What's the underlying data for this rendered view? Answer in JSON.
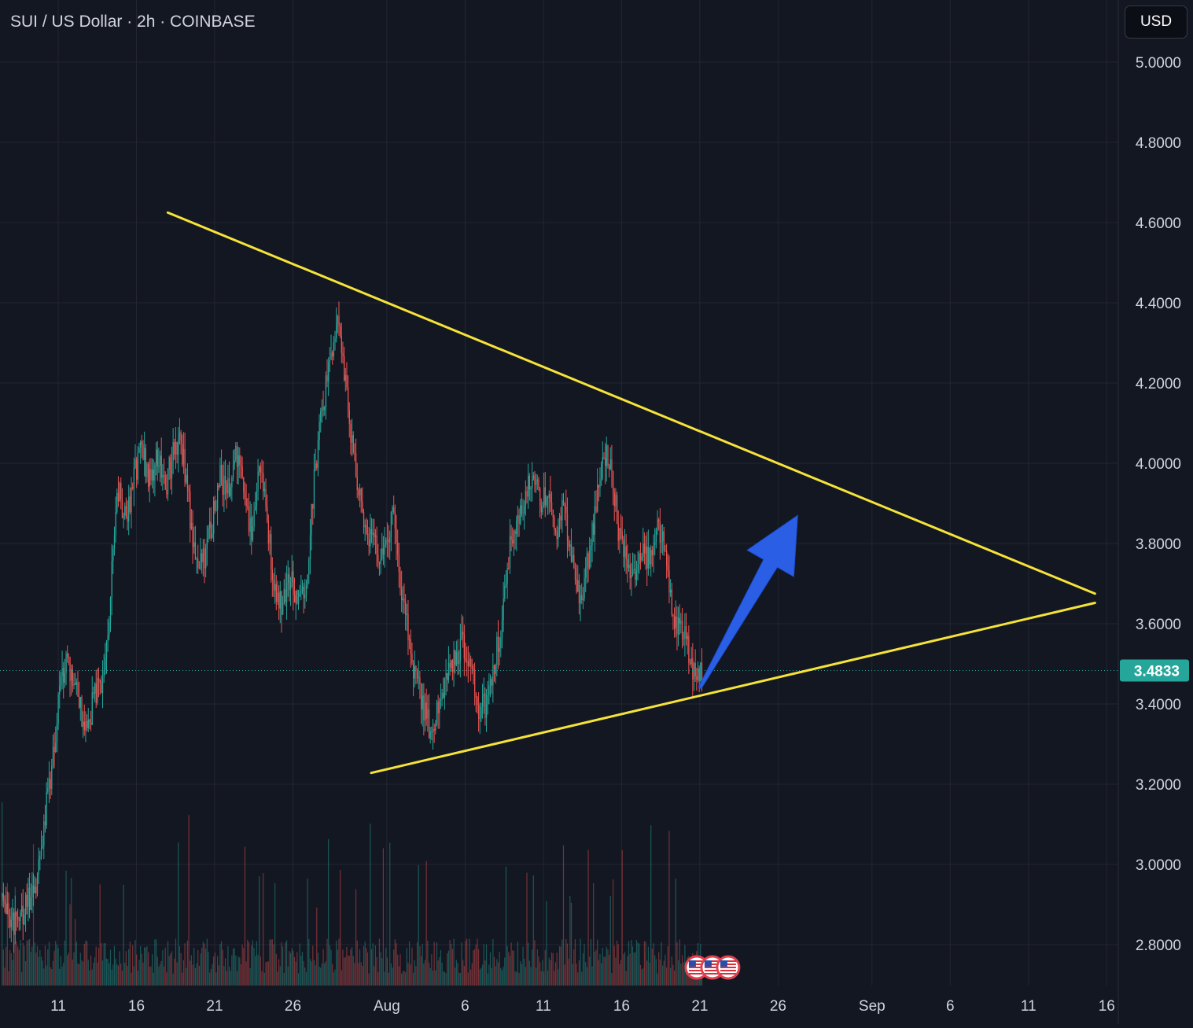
{
  "header": {
    "symbol_title": "SUI / US Dollar · 2h · COINBASE",
    "currency": "USD"
  },
  "colors": {
    "background": "#131722",
    "grid": "#232632",
    "axis_text": "#d1d4dc",
    "candle_up": "#26a69a",
    "candle_down": "#ef5350",
    "trendline": "#f5e33a",
    "arrow": "#2a5fe5",
    "price_badge": "#26a69a"
  },
  "chart_data": {
    "type": "candlestick",
    "timeframe": "2h",
    "y_axis": {
      "ticks": [
        "5.0000",
        "4.8000",
        "4.6000",
        "4.4000",
        "4.2000",
        "4.0000",
        "3.8000",
        "3.6000",
        "3.4000",
        "3.2000",
        "3.0000",
        "2.8000"
      ],
      "range": [
        2.7,
        5.13
      ]
    },
    "x_axis": {
      "ticks": [
        "11",
        "16",
        "21",
        "26",
        "Aug",
        "6",
        "11",
        "16",
        "21",
        "26",
        "Sep",
        "6",
        "11",
        "16"
      ],
      "tick_dates": [
        "2024-07-11",
        "2024-07-16",
        "2024-07-21",
        "2024-07-26",
        "2024-08-01",
        "2024-08-06",
        "2024-08-11",
        "2024-08-16",
        "2024-08-21",
        "2024-08-26",
        "2024-09-01",
        "2024-09-06",
        "2024-09-11",
        "2024-09-16"
      ],
      "range": [
        "2024-07-07 08:00",
        "2024-09-17 00:00"
      ]
    },
    "current_price": "3.4833",
    "price_path": [
      [
        "2024-07-07 10:00",
        2.92
      ],
      [
        "2024-07-08 06:00",
        2.85
      ],
      [
        "2024-07-08 20:00",
        2.89
      ],
      [
        "2024-07-09 14:00",
        2.95
      ],
      [
        "2024-07-10 02:00",
        3.1
      ],
      [
        "2024-07-10 14:00",
        3.24
      ],
      [
        "2024-07-11 00:00",
        3.4
      ],
      [
        "2024-07-11 10:00",
        3.5
      ],
      [
        "2024-07-11 20:00",
        3.48
      ],
      [
        "2024-07-12 08:00",
        3.4
      ],
      [
        "2024-07-12 18:00",
        3.33
      ],
      [
        "2024-07-13 08:00",
        3.42
      ],
      [
        "2024-07-13 20:00",
        3.45
      ],
      [
        "2024-07-14 08:00",
        3.66
      ],
      [
        "2024-07-14 18:00",
        3.95
      ],
      [
        "2024-07-15 08:00",
        3.85
      ],
      [
        "2024-07-15 20:00",
        3.96
      ],
      [
        "2024-07-16 08:00",
        4.05
      ],
      [
        "2024-07-16 20:00",
        3.95
      ],
      [
        "2024-07-17 08:00",
        4.02
      ],
      [
        "2024-07-17 20:00",
        3.94
      ],
      [
        "2024-07-18 08:00",
        4.02
      ],
      [
        "2024-07-18 20:00",
        4.06
      ],
      [
        "2024-07-19 08:00",
        3.9
      ],
      [
        "2024-07-19 20:00",
        3.74
      ],
      [
        "2024-07-20 08:00",
        3.77
      ],
      [
        "2024-07-20 20:00",
        3.85
      ],
      [
        "2024-07-21 08:00",
        3.97
      ],
      [
        "2024-07-21 20:00",
        3.93
      ],
      [
        "2024-07-22 08:00",
        4.02
      ],
      [
        "2024-07-22 20:00",
        3.93
      ],
      [
        "2024-07-23 08:00",
        3.82
      ],
      [
        "2024-07-23 20:00",
        3.99
      ],
      [
        "2024-07-24 08:00",
        3.87
      ],
      [
        "2024-07-24 20:00",
        3.68
      ],
      [
        "2024-07-25 08:00",
        3.64
      ],
      [
        "2024-07-25 20:00",
        3.73
      ],
      [
        "2024-07-26 08:00",
        3.65
      ],
      [
        "2024-07-26 20:00",
        3.7
      ],
      [
        "2024-07-27 08:00",
        3.95
      ],
      [
        "2024-07-27 20:00",
        4.12
      ],
      [
        "2024-07-28 08:00",
        4.25
      ],
      [
        "2024-07-28 20:00",
        4.38
      ],
      [
        "2024-07-29 08:00",
        4.2
      ],
      [
        "2024-07-29 20:00",
        4.02
      ],
      [
        "2024-07-30 08:00",
        3.9
      ],
      [
        "2024-07-30 20:00",
        3.83
      ],
      [
        "2024-07-31 08:00",
        3.78
      ],
      [
        "2024-07-31 20:00",
        3.76
      ],
      [
        "2024-08-01 08:00",
        3.88
      ],
      [
        "2024-08-01 20:00",
        3.72
      ],
      [
        "2024-08-02 08:00",
        3.58
      ],
      [
        "2024-08-02 20:00",
        3.46
      ],
      [
        "2024-08-03 08:00",
        3.39
      ],
      [
        "2024-08-03 20:00",
        3.33
      ],
      [
        "2024-08-04 08:00",
        3.4
      ],
      [
        "2024-08-04 20:00",
        3.46
      ],
      [
        "2024-08-05 08:00",
        3.52
      ],
      [
        "2024-08-05 20:00",
        3.55
      ],
      [
        "2024-08-06 08:00",
        3.5
      ],
      [
        "2024-08-06 20:00",
        3.39
      ],
      [
        "2024-08-07 08:00",
        3.4
      ],
      [
        "2024-08-07 20:00",
        3.5
      ],
      [
        "2024-08-08 08:00",
        3.6
      ],
      [
        "2024-08-08 20:00",
        3.78
      ],
      [
        "2024-08-09 08:00",
        3.85
      ],
      [
        "2024-08-09 20:00",
        3.92
      ],
      [
        "2024-08-10 08:00",
        3.96
      ],
      [
        "2024-08-10 20:00",
        3.9
      ],
      [
        "2024-08-11 08:00",
        3.93
      ],
      [
        "2024-08-11 20:00",
        3.83
      ],
      [
        "2024-08-12 08:00",
        3.9
      ],
      [
        "2024-08-12 20:00",
        3.75
      ],
      [
        "2024-08-13 08:00",
        3.65
      ],
      [
        "2024-08-13 20:00",
        3.76
      ],
      [
        "2024-08-14 08:00",
        3.89
      ],
      [
        "2024-08-14 20:00",
        4.03
      ],
      [
        "2024-08-15 08:00",
        3.99
      ],
      [
        "2024-08-15 20:00",
        3.82
      ],
      [
        "2024-08-16 08:00",
        3.75
      ],
      [
        "2024-08-16 20:00",
        3.7
      ],
      [
        "2024-08-17 08:00",
        3.77
      ],
      [
        "2024-08-17 20:00",
        3.75
      ],
      [
        "2024-08-18 08:00",
        3.85
      ],
      [
        "2024-08-18 20:00",
        3.78
      ],
      [
        "2024-08-19 08:00",
        3.6
      ],
      [
        "2024-08-19 20:00",
        3.6
      ],
      [
        "2024-08-20 08:00",
        3.52
      ],
      [
        "2024-08-20 20:00",
        3.46
      ],
      [
        "2024-08-21 04:00",
        3.4833
      ]
    ],
    "volume_scale_max": 100,
    "trendlines": [
      {
        "from": [
          "2024-07-18 00:00",
          4.625
        ],
        "to": [
          "2024-09-15 06:00",
          3.675
        ]
      },
      {
        "from": [
          "2024-07-31 00:00",
          3.228
        ],
        "to": [
          "2024-09-15 06:00",
          3.652
        ]
      }
    ],
    "annotation_arrow": {
      "from": [
        "2024-08-21 00:00",
        3.44
      ],
      "to": [
        "2024-08-27 06:00",
        3.87
      ]
    },
    "event_markers": [
      "us-flag-icon",
      "us-flag-icon",
      "us-flag-icon"
    ],
    "grid": true
  }
}
